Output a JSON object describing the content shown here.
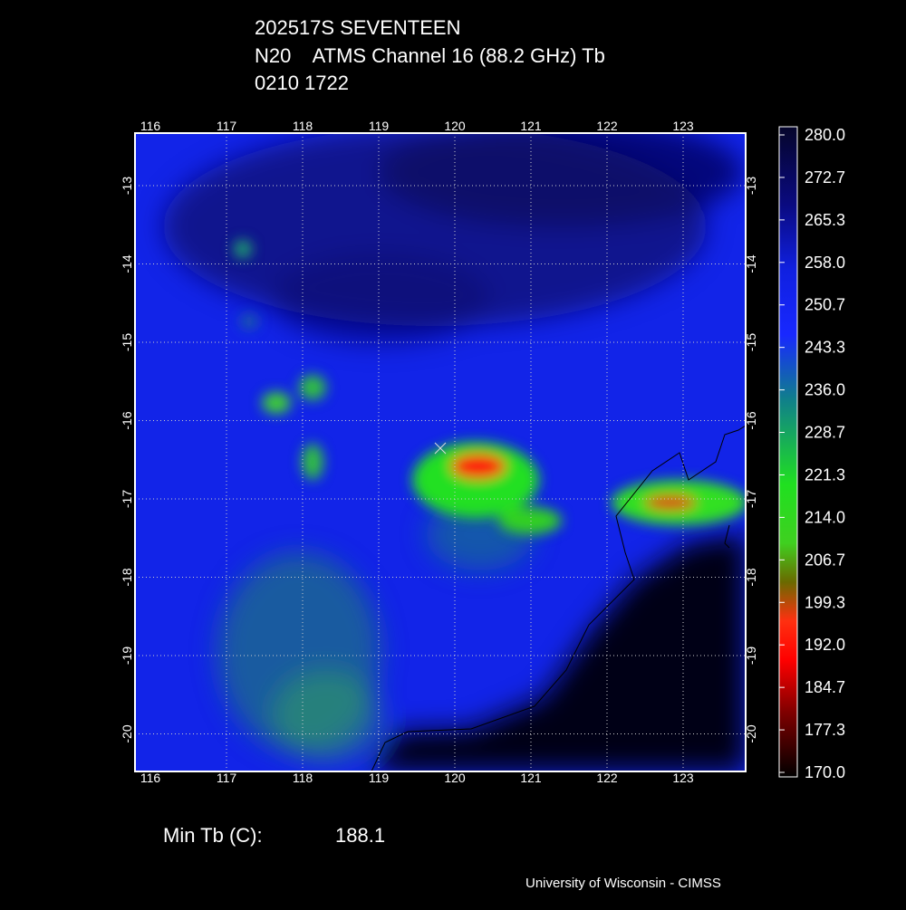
{
  "header": {
    "lines": [
      "202517S SEVENTEEN",
      "N20    ATMS Channel 16 (88.2 GHz) Tb",
      "0210 1722"
    ]
  },
  "map": {
    "lon_labels": [
      "116",
      "117",
      "118",
      "119",
      "120",
      "121",
      "122",
      "123"
    ],
    "lat_labels": [
      "-13",
      "-14",
      "-15",
      "-16",
      "-17",
      "-18",
      "-19",
      "-20"
    ]
  },
  "colorbar": {
    "labels": [
      "280.0",
      "272.7",
      "265.3",
      "258.0",
      "250.7",
      "243.3",
      "236.0",
      "228.7",
      "221.3",
      "214.0",
      "206.7",
      "199.3",
      "192.0",
      "184.7",
      "177.3",
      "170.0"
    ]
  },
  "footer": {
    "min_label": "Min Tb (C):",
    "min_value": "188.1",
    "credit": "University of Wisconsin - CIMSS"
  }
}
